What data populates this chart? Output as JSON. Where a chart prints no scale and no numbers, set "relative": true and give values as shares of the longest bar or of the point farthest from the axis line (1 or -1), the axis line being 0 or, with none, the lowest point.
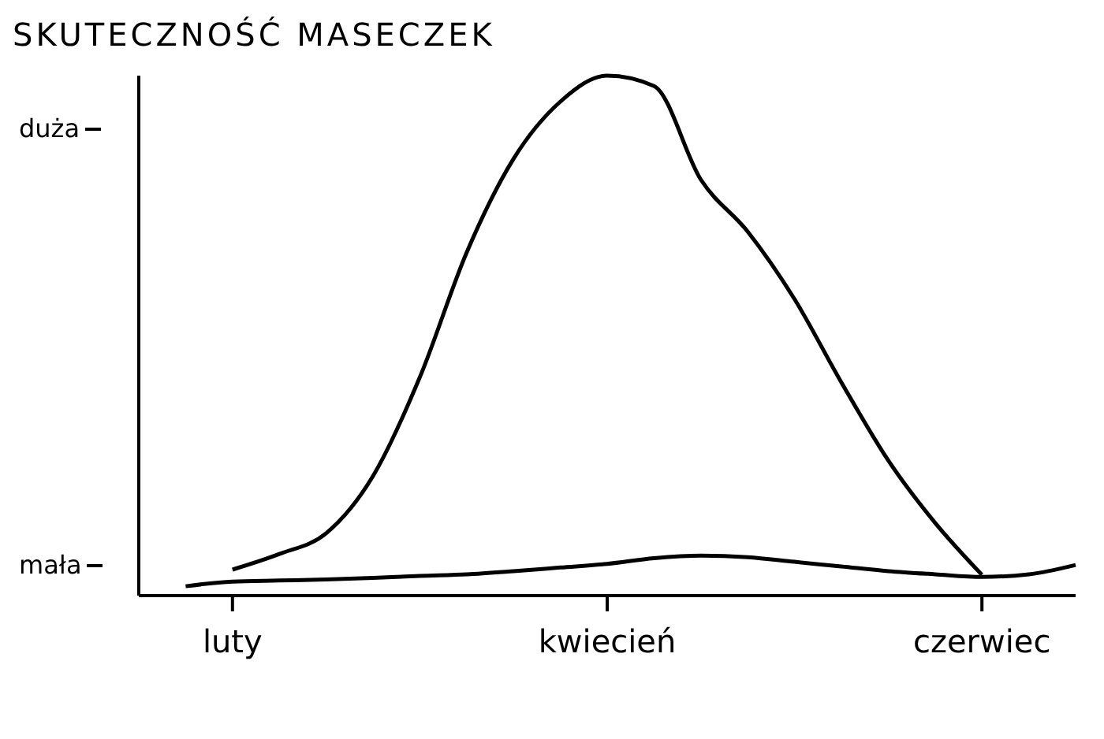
{
  "chart_data": {
    "type": "line",
    "title": "SKUTECZNOŚĆ MASECZEK",
    "relative": true,
    "categories": [
      null,
      null,
      "luty",
      null,
      null,
      null,
      null,
      null,
      null,
      null,
      "kwiecień",
      null,
      null,
      null,
      null,
      null,
      null,
      null,
      "czerwiec",
      null,
      null
    ],
    "series": [
      {
        "color": "#000000",
        "values": [
          null,
          null,
          0.05,
          0.08,
          0.12,
          0.23,
          0.42,
          0.66,
          0.84,
          0.95,
          1,
          0.98,
          0.8,
          0.7,
          0.57,
          0.41,
          0.26,
          0.14,
          0.04,
          null,
          null
        ]
      },
      {
        "color": "#000000",
        "values": [
          null,
          0.018,
          0.027,
          0.029,
          0.031,
          0.034,
          0.038,
          0.041,
          0.047,
          0.054,
          0.061,
          0.072,
          0.077,
          0.074,
          0.065,
          0.056,
          0.047,
          0.041,
          0.036,
          0.041,
          0.059
        ]
      }
    ],
    "annotations": [
      "duża",
      "mała"
    ],
    "grid": false,
    "legend": false,
    "marker": "none",
    "line_style": "solid"
  }
}
